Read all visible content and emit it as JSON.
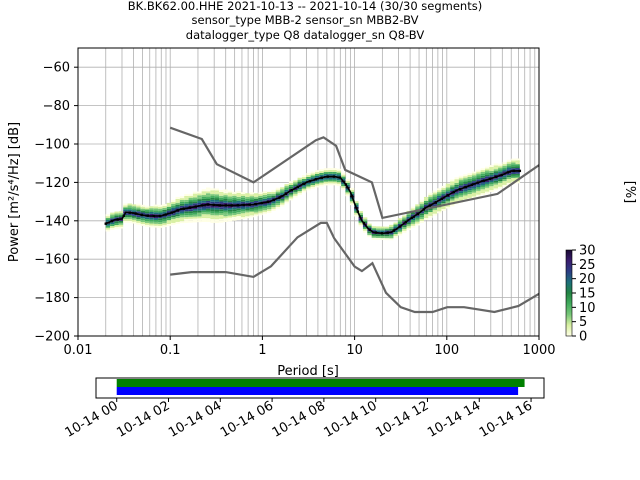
{
  "chart_data": {
    "type": "heatmap",
    "title_lines": [
      "BK.BK62.00.HHE   2021-10-13 -- 2021-10-14  (30/30 segments)",
      "sensor_type MBB-2 sensor_sn MBB2-BV",
      "datalogger_type Q8 datalogger_sn Q8-BV"
    ],
    "xlabel": "Period [s]",
    "ylabel": "Power [m²/s⁴/Hz] [dB]",
    "xscale": "log",
    "xlim": [
      0.01,
      1000
    ],
    "ylim": [
      -200,
      -50
    ],
    "x_ticks": [
      {
        "v": 0.01,
        "label": "0.01"
      },
      {
        "v": 0.1,
        "label": "0.1"
      },
      {
        "v": 1,
        "label": "1"
      },
      {
        "v": 10,
        "label": "10"
      },
      {
        "v": 100,
        "label": "100"
      },
      {
        "v": 1000,
        "label": "1000"
      }
    ],
    "y_ticks": [
      {
        "v": -60,
        "label": "−60"
      },
      {
        "v": -80,
        "label": "−80"
      },
      {
        "v": -100,
        "label": "−100"
      },
      {
        "v": -120,
        "label": "−120"
      },
      {
        "v": -140,
        "label": "−140"
      },
      {
        "v": -160,
        "label": "−160"
      },
      {
        "v": -180,
        "label": "−180"
      },
      {
        "v": -200,
        "label": "−200"
      }
    ],
    "grid": true,
    "nlnm": [
      [
        0.1,
        -168
      ],
      [
        0.17,
        -166.7
      ],
      [
        0.4,
        -166.7
      ],
      [
        0.8,
        -169.2
      ],
      [
        1.24,
        -163.7
      ],
      [
        2.4,
        -148.6
      ],
      [
        4.3,
        -141.1
      ],
      [
        5,
        -141.1
      ],
      [
        6,
        -149
      ],
      [
        10,
        -163.8
      ],
      [
        12,
        -166.2
      ],
      [
        15.6,
        -162.1
      ],
      [
        21.9,
        -177.5
      ],
      [
        31.6,
        -185
      ],
      [
        45,
        -187.5
      ],
      [
        70,
        -187.5
      ],
      [
        101,
        -185
      ],
      [
        154,
        -185
      ],
      [
        328,
        -187.5
      ],
      [
        600,
        -184.4
      ],
      [
        1000,
        -178
      ]
    ],
    "nhnm": [
      [
        0.1,
        -91.5
      ],
      [
        0.22,
        -97.4
      ],
      [
        0.32,
        -110.5
      ],
      [
        0.8,
        -120
      ],
      [
        3.8,
        -98
      ],
      [
        4.6,
        -96.5
      ],
      [
        6.3,
        -101
      ],
      [
        7.9,
        -113.5
      ],
      [
        15.4,
        -120
      ],
      [
        20,
        -138.5
      ],
      [
        354.8,
        -126
      ],
      [
        1000,
        -111
      ]
    ],
    "mean_psd": [
      [
        0.02,
        -141.5
      ],
      [
        0.025,
        -139.5
      ],
      [
        0.03,
        -139
      ],
      [
        0.033,
        -135.5
      ],
      [
        0.04,
        -136
      ],
      [
        0.05,
        -137
      ],
      [
        0.06,
        -137.5
      ],
      [
        0.08,
        -137.5
      ],
      [
        0.1,
        -136
      ],
      [
        0.13,
        -134
      ],
      [
        0.17,
        -133
      ],
      [
        0.25,
        -131.5
      ],
      [
        0.35,
        -132
      ],
      [
        0.5,
        -132
      ],
      [
        0.8,
        -131.5
      ],
      [
        1.2,
        -130
      ],
      [
        1.6,
        -127.5
      ],
      [
        2,
        -124.5
      ],
      [
        2.5,
        -122
      ],
      [
        3,
        -120
      ],
      [
        4,
        -118
      ],
      [
        5,
        -117
      ],
      [
        6,
        -117
      ],
      [
        7,
        -117.5
      ],
      [
        8,
        -121
      ],
      [
        9,
        -125
      ],
      [
        10,
        -131
      ],
      [
        11,
        -136
      ],
      [
        12,
        -140
      ],
      [
        14,
        -144
      ],
      [
        16,
        -146
      ],
      [
        20,
        -146.5
      ],
      [
        25,
        -146
      ],
      [
        30,
        -143.5
      ],
      [
        40,
        -139
      ],
      [
        50,
        -136
      ],
      [
        60,
        -133
      ],
      [
        75,
        -130.5
      ],
      [
        100,
        -127
      ],
      [
        130,
        -124
      ],
      [
        170,
        -122
      ],
      [
        220,
        -120
      ],
      [
        300,
        -118
      ],
      [
        400,
        -116
      ],
      [
        500,
        -114
      ],
      [
        620,
        -114
      ]
    ],
    "psd_spread_db": [
      [
        0.02,
        4
      ],
      [
        0.1,
        6
      ],
      [
        0.3,
        9
      ],
      [
        0.8,
        6
      ],
      [
        3,
        4
      ],
      [
        10,
        4
      ],
      [
        20,
        3
      ],
      [
        60,
        6
      ],
      [
        200,
        7
      ],
      [
        600,
        6
      ]
    ],
    "colorbar": {
      "label": "[%]",
      "range": [
        0,
        30
      ],
      "ticks": [
        "0",
        "5",
        "10",
        "15",
        "20",
        "25",
        "30"
      ],
      "colors": [
        "#ffffe5",
        "#d9f0a3",
        "#78c679",
        "#41ab5d",
        "#238443",
        "#1d6f7a",
        "#2c3e84",
        "#3a1d6e",
        "#1a0a33"
      ]
    },
    "coverage": {
      "x_ticks": [
        "10-14 00",
        "10-14 02",
        "10-14 04",
        "10-14 06",
        "10-14 08",
        "10-14 10",
        "10-14 12",
        "10-14 14",
        "10-14 16"
      ],
      "bars": [
        {
          "color": "#008000",
          "start": 0,
          "end": 15.75
        },
        {
          "color": "#0000ff",
          "start": 0,
          "end": 15.5
        }
      ],
      "xlim": [
        -0.8,
        16.5
      ]
    }
  }
}
